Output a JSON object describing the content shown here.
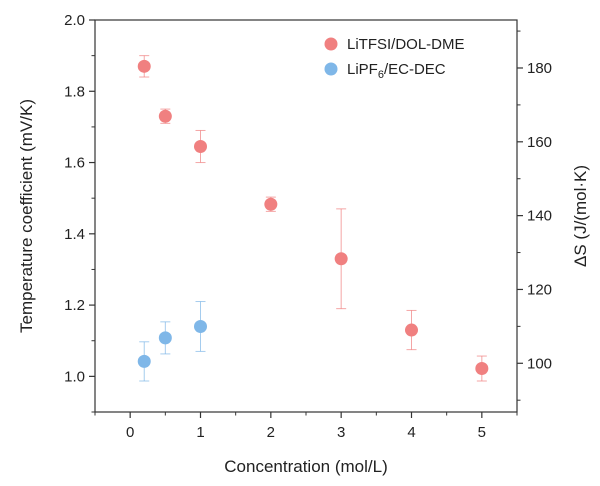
{
  "chart_data": {
    "type": "scatter",
    "title": "",
    "xlabel": "Concentration (mol/L)",
    "ylabel": "Temperature coefficient (mV/K)",
    "y2label": "ΔS (J/(mol·K)",
    "xlim": [
      -0.5,
      5.5
    ],
    "ylim": [
      0.9,
      2.0
    ],
    "y2lim": [
      86.8,
      193
    ],
    "xticks": [
      "0",
      "1",
      "2",
      "3",
      "4",
      "5"
    ],
    "yticks": [
      "1.0",
      "1.2",
      "1.4",
      "1.6",
      "1.8",
      "2.0"
    ],
    "y2ticks": [
      "100",
      "120",
      "140",
      "160",
      "180"
    ],
    "legend_position": "top-right",
    "series": [
      {
        "name": "LiTFSI/DOL-DME",
        "label_main": "LiTFSI/DOL-DME",
        "color": "#f08080",
        "x": [
          0.2,
          0.5,
          1,
          2,
          3,
          4,
          5
        ],
        "y": [
          1.87,
          1.73,
          1.645,
          1.483,
          1.33,
          1.13,
          1.022
        ],
        "yerr_low": [
          0.03,
          0.02,
          0.045,
          0.02,
          0.14,
          0.055,
          0.035
        ],
        "yerr_high": [
          0.03,
          0.02,
          0.045,
          0.02,
          0.14,
          0.055,
          0.035
        ]
      },
      {
        "name": "LiPF6/EC-DEC",
        "label_main": "LiPF",
        "label_sub": "6",
        "label_rest": "/EC-DEC",
        "color": "#7fb7e8",
        "x": [
          0.2,
          0.5,
          1
        ],
        "y": [
          1.042,
          1.108,
          1.14
        ],
        "yerr_low": [
          0.055,
          0.045,
          0.07
        ],
        "yerr_high": [
          0.055,
          0.045,
          0.07
        ]
      }
    ]
  }
}
